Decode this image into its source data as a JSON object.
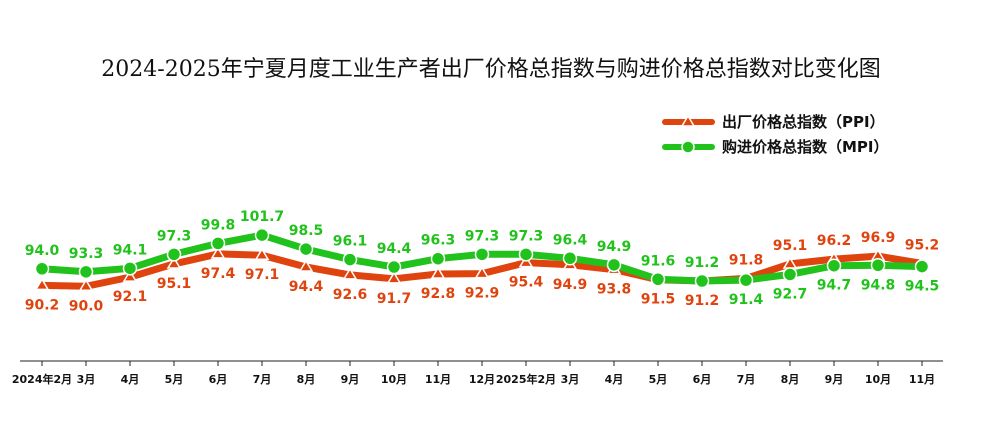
{
  "chart_data": {
    "type": "line",
    "title": "2024-2025年宁夏月度工业生产者出厂价格总指数与购进价格总指数对比变化图",
    "categories": [
      "2024年2月",
      "3月",
      "4月",
      "5月",
      "6月",
      "7月",
      "8月",
      "9月",
      "10月",
      "11月",
      "12月",
      "2025年2月",
      "3月",
      "4月",
      "5月",
      "6月",
      "7月",
      "8月",
      "9月",
      "10月",
      "11月"
    ],
    "series": [
      {
        "name": "出厂价格总指数（PPI）",
        "color": "#e0440e",
        "marker": "triangle",
        "values": [
          90.2,
          90.0,
          92.1,
          95.1,
          97.4,
          97.1,
          94.4,
          92.6,
          91.7,
          92.8,
          92.9,
          95.4,
          94.9,
          93.8,
          91.5,
          91.2,
          91.8,
          95.1,
          96.2,
          96.9,
          95.2
        ]
      },
      {
        "name": "购进价格总指数（MPI）",
        "color": "#22c21c",
        "marker": "circle",
        "values": [
          94.0,
          93.3,
          94.1,
          97.3,
          99.8,
          101.7,
          98.5,
          96.1,
          94.4,
          96.3,
          97.3,
          97.3,
          96.4,
          94.9,
          91.6,
          91.2,
          91.4,
          92.7,
          94.7,
          94.8,
          94.5
        ]
      }
    ],
    "legend": "top-right",
    "grid": false
  }
}
